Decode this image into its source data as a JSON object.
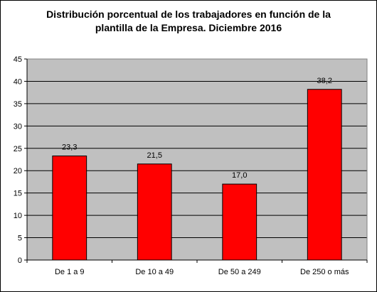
{
  "chart_data": {
    "type": "bar",
    "title_lines": [
      "Distribución porcentual de los trabajadores en función de la",
      "plantilla de la Empresa. Diciembre 2016"
    ],
    "categories": [
      "De 1 a 9",
      "De 10 a 49",
      "De 50 a 249",
      "De 250 o más"
    ],
    "values": [
      23.3,
      21.5,
      17.0,
      38.2
    ],
    "data_labels": [
      "23,3",
      "21,5",
      "17,0",
      "38,2"
    ],
    "yticks": [
      "0",
      "5",
      "10",
      "15",
      "20",
      "25",
      "30",
      "35",
      "40",
      "45"
    ],
    "ylim": [
      0,
      45
    ],
    "xlabel": "",
    "ylabel": "",
    "grid": true,
    "legend": "none",
    "colors": {
      "bar": "#ff0000",
      "plot_background": "#c0c0c0",
      "gridline": "#000000"
    }
  }
}
